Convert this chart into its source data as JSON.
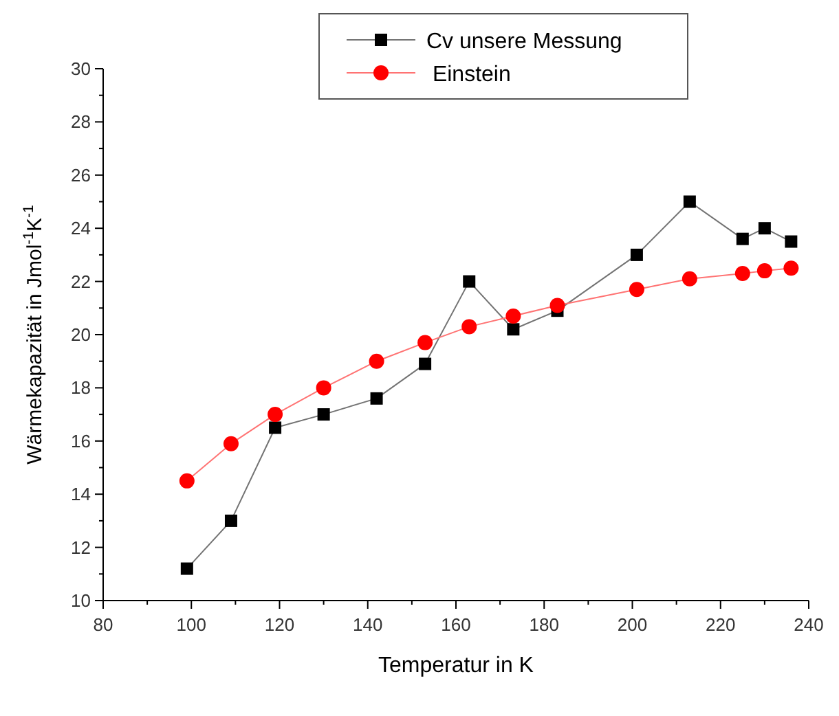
{
  "chart_data": {
    "type": "line",
    "xlabel": "Temperatur in K",
    "ylabel": "Wärmekapazität in Jmol$^{-1}$K$^{-1}$",
    "x": [
      99,
      109,
      119,
      130,
      142,
      153,
      163,
      173,
      183,
      201,
      213,
      225,
      230,
      236
    ],
    "series": [
      {
        "name": "Cv unsere Messung",
        "color": "#000000",
        "marker": "square",
        "values": [
          11.2,
          13.0,
          16.5,
          17.0,
          17.6,
          18.9,
          22.0,
          20.2,
          20.9,
          23.0,
          25.0,
          23.6,
          24.0,
          23.5
        ]
      },
      {
        "name": " Einstein",
        "color": "#ff0000",
        "marker": "circle",
        "values": [
          14.5,
          15.9,
          17.0,
          18.0,
          19.0,
          19.7,
          20.3,
          20.7,
          21.1,
          21.7,
          22.1,
          22.3,
          22.4,
          22.5
        ]
      }
    ],
    "xlim": [
      80,
      240
    ],
    "xticks": [
      80,
      100,
      120,
      140,
      160,
      180,
      200,
      220,
      240
    ],
    "ylim": [
      10,
      30
    ],
    "yticks": [
      10,
      12,
      14,
      16,
      18,
      20,
      22,
      24,
      26,
      28,
      30
    ],
    "legend": "top",
    "grid": false,
    "line_style": "solid"
  }
}
